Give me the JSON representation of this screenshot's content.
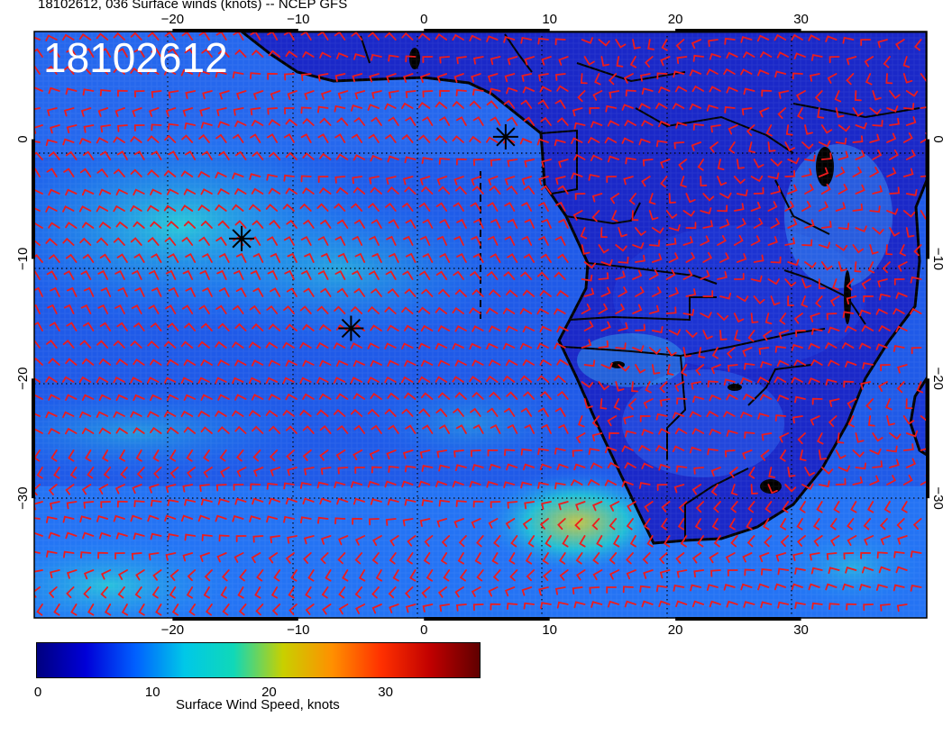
{
  "header": {
    "title": "18102612, 036 Surface winds (knots) -- NCEP GFS"
  },
  "map": {
    "stamp": "18102612",
    "lon_range": [
      -31,
      40
    ],
    "lat_range": [
      -40,
      9
    ],
    "x_ticks": [
      {
        "value": -20,
        "label": "−20"
      },
      {
        "value": -10,
        "label": "−10"
      },
      {
        "value": 0,
        "label": "0"
      },
      {
        "value": 10,
        "label": "10"
      },
      {
        "value": 20,
        "label": "20"
      },
      {
        "value": 30,
        "label": "30"
      }
    ],
    "y_ticks": [
      {
        "value": 0,
        "label": "0"
      },
      {
        "value": -10,
        "label": "−10"
      },
      {
        "value": -20,
        "label": "−20"
      },
      {
        "value": -30,
        "label": "−30"
      }
    ],
    "barb_color": "#ee1c1c",
    "coast_color": "#000000",
    "markers": [
      {
        "lon": 6.5,
        "lat": 0.2
      },
      {
        "lon": -14.5,
        "lat": -8.3
      },
      {
        "lon": -5.8,
        "lat": -15.8
      }
    ]
  },
  "colorbar": {
    "label": "Surface Wind Speed, knots",
    "min": 0,
    "max": 38,
    "ticks": [
      {
        "value": 0,
        "label": "0"
      },
      {
        "value": 10,
        "label": "10"
      },
      {
        "value": 20,
        "label": "20"
      },
      {
        "value": 30,
        "label": "30"
      }
    ],
    "colors": [
      "#000080",
      "#0000d8",
      "#0060ff",
      "#00c8e8",
      "#10d8b8",
      "#c8d000",
      "#ff9000",
      "#ff3000",
      "#c00000",
      "#600000"
    ]
  }
}
